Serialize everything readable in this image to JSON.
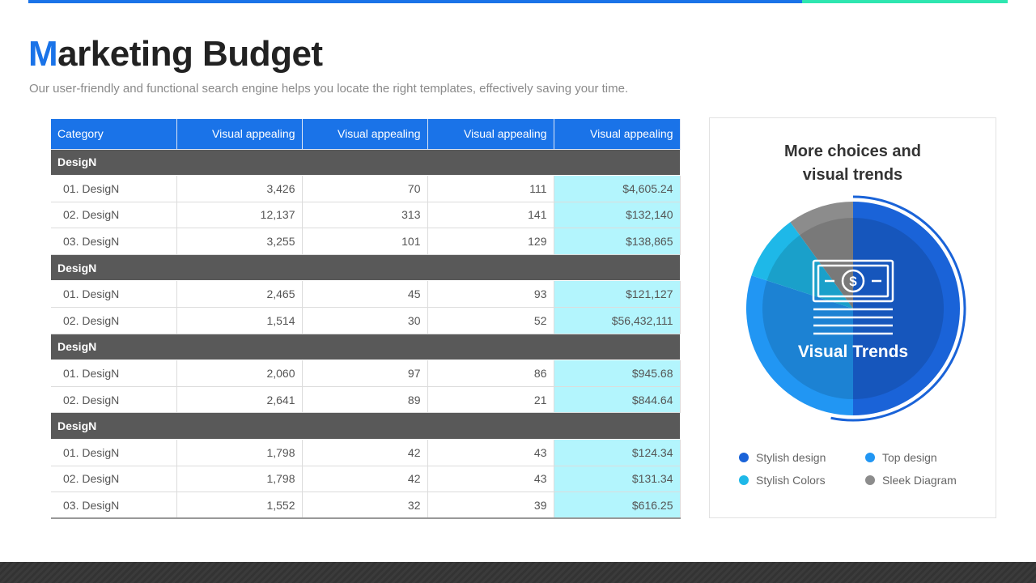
{
  "slide": {
    "title_first_letter": "M",
    "title_rest": "arketing Budget",
    "subtitle": "Our user-friendly and functional search engine helps you locate the right templates, effectively saving your time."
  },
  "table": {
    "headers": [
      "Category",
      "Visual appealing",
      "Visual appealing",
      "Visual appealing",
      "Visual appealing"
    ],
    "groups": [
      {
        "label": "DesigN",
        "rows": [
          [
            "01. DesigN",
            "3,426",
            "70",
            "111",
            "$4,605.24"
          ],
          [
            "02. DesigN",
            "12,137",
            "313",
            "141",
            "$132,140"
          ],
          [
            "03. DesigN",
            "3,255",
            "101",
            "129",
            "$138,865"
          ]
        ]
      },
      {
        "label": "DesigN",
        "rows": [
          [
            "01. DesigN",
            "2,465",
            "45",
            "93",
            "$121,127"
          ],
          [
            "02. DesigN",
            "1,514",
            "30",
            "52",
            "$56,432,111"
          ]
        ]
      },
      {
        "label": "DesigN",
        "rows": [
          [
            "01. DesigN",
            "2,060",
            "97",
            "86",
            "$945.68"
          ],
          [
            "02. DesigN",
            "2,641",
            "89",
            "21",
            "$844.64"
          ]
        ]
      },
      {
        "label": "DesigN",
        "rows": [
          [
            "01. DesigN",
            "1,798",
            "42",
            "43",
            "$124.34"
          ],
          [
            "02. DesigN",
            "1,798",
            "42",
            "43",
            "$131.34"
          ],
          [
            "03. DesigN",
            "1,552",
            "32",
            "39",
            "$616.25"
          ]
        ]
      }
    ]
  },
  "card": {
    "title_line1": "More choices and",
    "title_line2": "visual trends",
    "center_label": "Visual Trends",
    "center_icon": "money-bill-icon"
  },
  "chart_data": {
    "type": "pie",
    "series": [
      {
        "name": "Stylish design",
        "value": 50,
        "color": "#1a63d8"
      },
      {
        "name": "Top design",
        "value": 30,
        "color": "#2196f3"
      },
      {
        "name": "Stylish Colors",
        "value": 10,
        "color": "#1eb8e8"
      },
      {
        "name": "Sleek Diagram",
        "value": 10,
        "color": "#8c8c8c"
      }
    ]
  },
  "legend": [
    {
      "label": "Stylish design",
      "color": "#1a63d8"
    },
    {
      "label": "Top design",
      "color": "#2196f3"
    },
    {
      "label": "Stylish Colors",
      "color": "#1eb8e8"
    },
    {
      "label": "Sleek Diagram",
      "color": "#8c8c8c"
    }
  ],
  "colors": {
    "accent": "#1a73e8",
    "accent_secondary": "#2ee6b0",
    "highlight": "#b3f5fd",
    "group_row": "#595959"
  }
}
